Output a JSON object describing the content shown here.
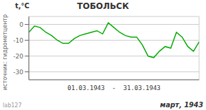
{
  "chart_data": {
    "type": "line",
    "title": "ТОБОЛЬСК",
    "ylabel": "t,°C",
    "xlabel": "01.03.1943  -  31.03.1943",
    "annotations": [
      "март, 1943",
      "источник: гидрометцентр",
      "lab127"
    ],
    "x": [
      1,
      2,
      3,
      4,
      5,
      6,
      7,
      8,
      9,
      10,
      11,
      12,
      13,
      14,
      15,
      16,
      17,
      18,
      19,
      20,
      21,
      22,
      23,
      24,
      25,
      26,
      27,
      28,
      29,
      30,
      31
    ],
    "values": [
      -5,
      -1,
      -2,
      -5,
      -7,
      -10,
      -12,
      -12,
      -9,
      -7,
      -6,
      -5,
      -4,
      -6,
      1,
      -2,
      -5,
      -7,
      -8,
      -8,
      -13,
      -20,
      -21,
      -17,
      -14,
      -15,
      -5,
      -8,
      -14,
      -17,
      -11
    ],
    "color": "#00aa00",
    "xlim": [
      1,
      31
    ],
    "xticks": [
      1,
      8,
      15,
      22,
      29
    ],
    "ylim": [
      -35,
      5
    ],
    "yticks": [
      0,
      -10,
      -20,
      -30
    ],
    "grid": true,
    "tick_labels": "y"
  }
}
